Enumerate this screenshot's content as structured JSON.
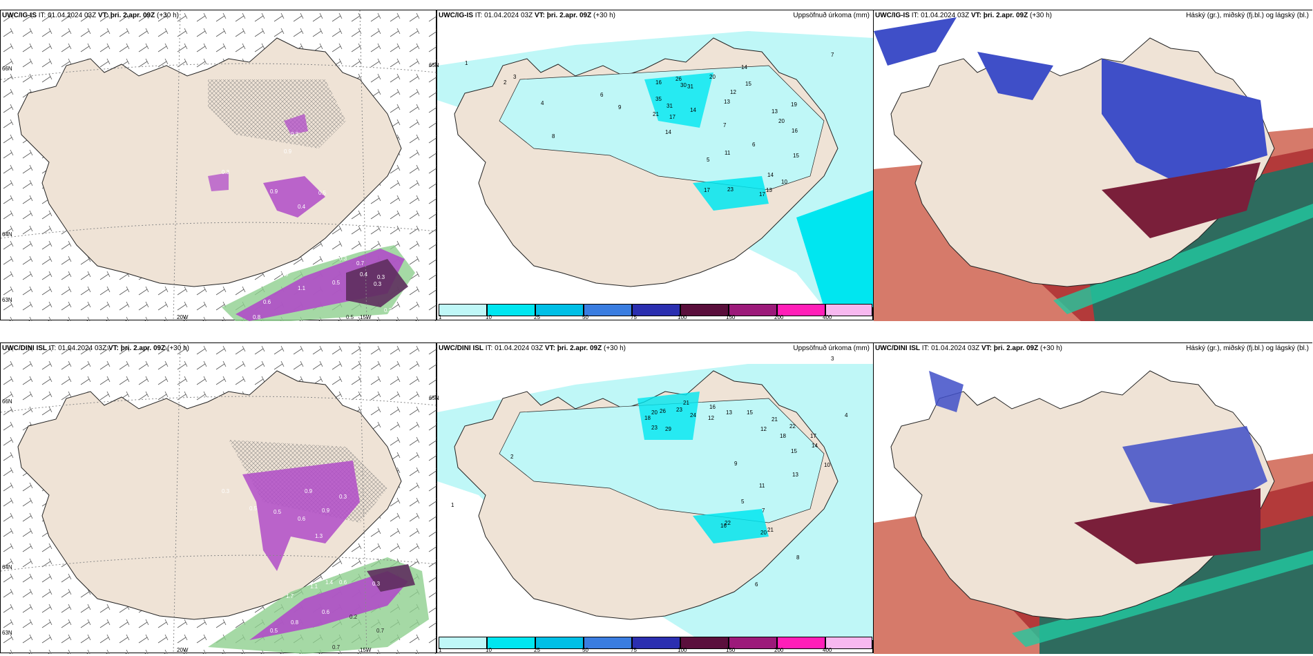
{
  "rows": [
    {
      "panels": [
        {
          "model": "UWC/IG-IS",
          "it": "IT: 01.04.2024 03Z",
          "vt_label": "VT:",
          "vt": "þri. 2.apr. 09Z",
          "lead": "(+30 h)",
          "labels": [
            "0.3",
            "0.9",
            "0.4",
            "0.9",
            "0.5",
            "0.3",
            "0.7",
            "0.3",
            "1.1",
            "0.5",
            "0.2",
            "0.5",
            "0.4",
            "0.6",
            "0.3",
            "0.6",
            "0.3",
            "0.8"
          ],
          "lon_labels": [
            "20W",
            "15W"
          ],
          "lat_labels": [
            "66N",
            "64N",
            "63N",
            "65N"
          ]
        },
        {
          "model": "UWC/IG-IS",
          "it": "IT: 01.04.2024 03Z",
          "vt_label": "VT:",
          "vt": "þri. 2.apr. 09Z",
          "lead": "(+30 h)",
          "title_right": "Uppsöfnuð úrkoma (mm)",
          "values": [
            "16",
            "26",
            "30",
            "31",
            "20",
            "14",
            "15",
            "12",
            "13",
            "35",
            "31",
            "17",
            "14",
            "21",
            "14",
            "7",
            "13",
            "19",
            "20",
            "16",
            "15",
            "11",
            "5",
            "6",
            "17",
            "23",
            "17",
            "13",
            "14",
            "10",
            "2",
            "3",
            "4",
            "6",
            "7",
            "8",
            "9",
            "1"
          ],
          "colorbar": [
            {
              "label": "1",
              "color": "#bff7f7"
            },
            {
              "label": "10",
              "color": "#00e6f0"
            },
            {
              "label": "25",
              "color": "#00bfe6"
            },
            {
              "label": "50",
              "color": "#3a7de0"
            },
            {
              "label": "75",
              "color": "#2b2fb0"
            },
            {
              "label": "100",
              "color": "#5a0f3c"
            },
            {
              "label": "150",
              "color": "#9c1a7a"
            },
            {
              "label": "200",
              "color": "#ff1fb8"
            },
            {
              "label": "400",
              "color": "#f7b8ef"
            }
          ]
        },
        {
          "model": "UWC/IG-IS",
          "it": "IT: 01.04.2024 03Z",
          "vt_label": "VT:",
          "vt": "þri. 2.apr. 09Z",
          "lead": "(+30 h)",
          "title_right": "Háský (gr.), miðský (fj.bl.) og lágský (bl.)"
        }
      ]
    },
    {
      "panels": [
        {
          "model": "UWC/DINI ISL",
          "it": "IT: 01.04.2024 03Z",
          "vt_label": "VT:",
          "vt": "þri. 2.apr. 09Z",
          "lead": "(+30 h)",
          "labels": [
            "0.3",
            "0.5",
            "0.9",
            "0.6",
            "0.3",
            "1.1",
            "0.6",
            "1.7",
            "1.4",
            "0.3",
            "0.5",
            "0.7",
            "0.2",
            "0.7",
            "0.8",
            "0.6",
            "0.9",
            "0.5",
            "1.3"
          ],
          "lon_labels": [
            "20W",
            "15W"
          ],
          "lat_labels": [
            "66N",
            "64N",
            "63N",
            "65N"
          ]
        },
        {
          "model": "UWC/DINI ISL",
          "it": "IT: 01.04.2024 03Z",
          "vt_label": "VT:",
          "vt": "þri. 2.apr. 09Z",
          "lead": "(+30 h)",
          "title_right": "Uppsöfnuð úrkoma (mm)",
          "values": [
            "20",
            "26",
            "23",
            "21",
            "24",
            "18",
            "23",
            "29",
            "16",
            "12",
            "13",
            "15",
            "22",
            "18",
            "17",
            "21",
            "15",
            "12",
            "14",
            "16",
            "13",
            "11",
            "20",
            "21",
            "22",
            "5",
            "6",
            "7",
            "8",
            "9",
            "10",
            "3",
            "4",
            "1",
            "2"
          ],
          "colorbar": [
            {
              "label": "1",
              "color": "#bff7f7"
            },
            {
              "label": "10",
              "color": "#00e6f0"
            },
            {
              "label": "25",
              "color": "#00bfe6"
            },
            {
              "label": "50",
              "color": "#3a7de0"
            },
            {
              "label": "75",
              "color": "#2b2fb0"
            },
            {
              "label": "100",
              "color": "#5a0f3c"
            },
            {
              "label": "150",
              "color": "#9c1a7a"
            },
            {
              "label": "200",
              "color": "#ff1fb8"
            },
            {
              "label": "400",
              "color": "#f7b8ef"
            }
          ]
        },
        {
          "model": "UWC/DINI ISL",
          "it": "IT: 01.04.2024 03Z",
          "vt_label": "VT:",
          "vt": "þri. 2.apr. 09Z",
          "lead": "(+30 h)",
          "title_right": "Háský (gr.), miðský (fj.bl.) og lágský (bl.)"
        }
      ]
    }
  ],
  "colors": {
    "land": "#efe3d6",
    "sea": "#ffffff",
    "precip_light": "#bff7f7",
    "precip_mid": "#00e6f0",
    "high_cloud_green": "#2e6b5e",
    "mid_cloud_red": "#b33a3a",
    "low_cloud_blue": "#3f4fc8",
    "snow": "#b04cc8",
    "hail_green": "#8fcf8f"
  }
}
